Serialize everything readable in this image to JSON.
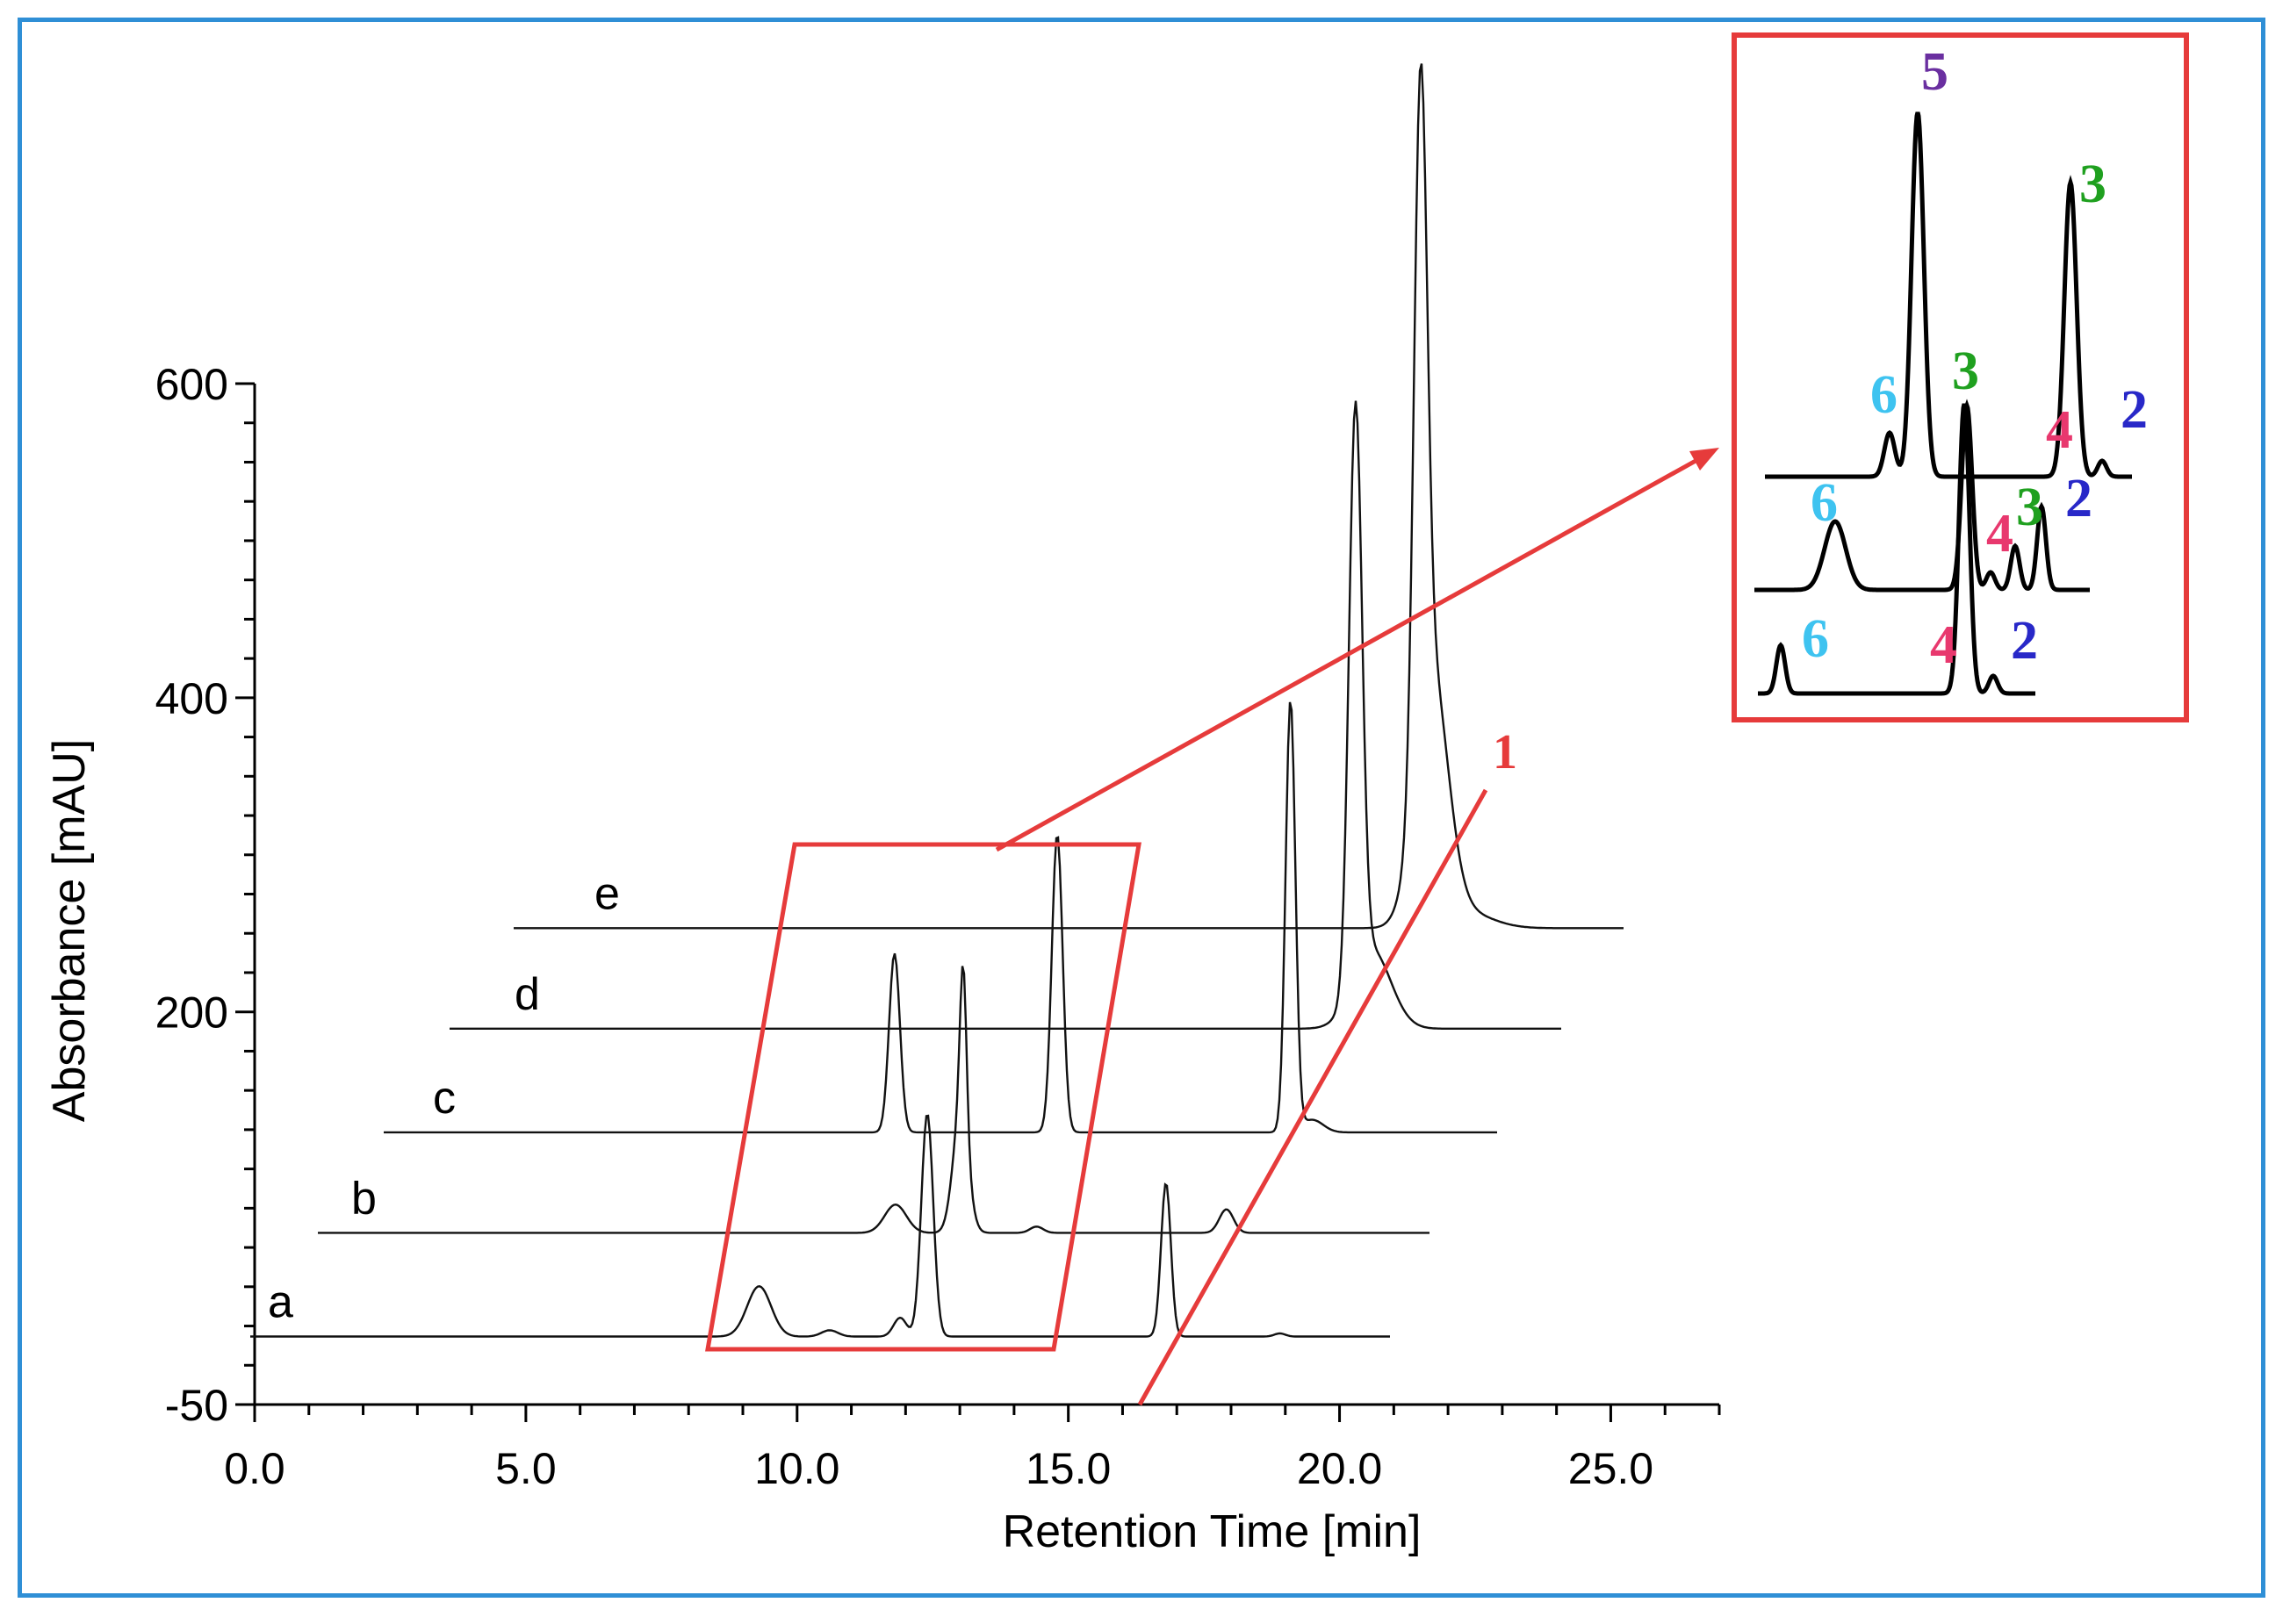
{
  "chart_data": {
    "type": "line",
    "xlabel": "Retention Time [min]",
    "ylabel": "Absorbance [mAU]",
    "xlim": [
      0,
      27
    ],
    "ylim": [
      -50,
      600
    ],
    "x_ticks": [
      "0.0",
      "5.0",
      "10.0",
      "15.0",
      "20.0",
      "25.0"
    ],
    "x_tick_values": [
      0,
      5,
      10,
      15,
      20,
      25
    ],
    "y_ticks": [
      "600",
      "400",
      "200",
      "-50"
    ],
    "y_tick_values": [
      600,
      400,
      200,
      -50
    ],
    "series": [
      {
        "name": "a",
        "x_start": 0,
        "x_end": 21,
        "baseline": 0,
        "peaks": [
          [
            9.3,
            32,
            0.22
          ],
          [
            10.6,
            4,
            0.15
          ],
          [
            11.9,
            12,
            0.12
          ],
          [
            12.4,
            142,
            0.11
          ],
          [
            16.8,
            98,
            0.09
          ],
          [
            18.9,
            2,
            0.1
          ]
        ]
      },
      {
        "name": "b",
        "x_start": 0,
        "x_end": 21,
        "baseline": 0,
        "peaks": [
          [
            10.6,
            18,
            0.2
          ],
          [
            11.8,
            76,
            0.14
          ],
          [
            11.85,
            100,
            0.06
          ],
          [
            13.2,
            4,
            0.12
          ],
          [
            16.7,
            15,
            0.13
          ]
        ]
      },
      {
        "name": "c",
        "x_start": 0,
        "x_end": 21,
        "baseline": 0,
        "peaks": [
          [
            9.4,
            114,
            0.1
          ],
          [
            12.4,
            190,
            0.1
          ],
          [
            16.7,
            275,
            0.09
          ],
          [
            17.1,
            8,
            0.2
          ]
        ]
      },
      {
        "name": "d",
        "x_start": 0,
        "x_end": 21,
        "baseline": 0,
        "peaks": [
          [
            16.7,
            365,
            0.12
          ],
          [
            17.0,
            50,
            0.35
          ]
        ]
      },
      {
        "name": "e",
        "x_start": 0,
        "x_end": 21,
        "baseline": 0,
        "peaks": [
          [
            16.7,
            420,
            0.12
          ],
          [
            16.9,
            160,
            0.3
          ],
          [
            17.5,
            10,
            0.5
          ]
        ]
      }
    ],
    "annotations": {
      "peak_label": "1",
      "zoom_numbers": [
        "5",
        "3",
        "6",
        "3",
        "4",
        "2",
        "6",
        "4",
        "3",
        "2",
        "6",
        "4",
        "2"
      ]
    },
    "colors": {
      "frame": "#2f8fd6",
      "highlight": "#e63b3b",
      "peak_6": "#3ec3f0",
      "peak_5": "#6a2fa0",
      "peak_3": "#1fa01f",
      "peak_4": "#e8386e",
      "peak_2": "#2828c8"
    }
  }
}
